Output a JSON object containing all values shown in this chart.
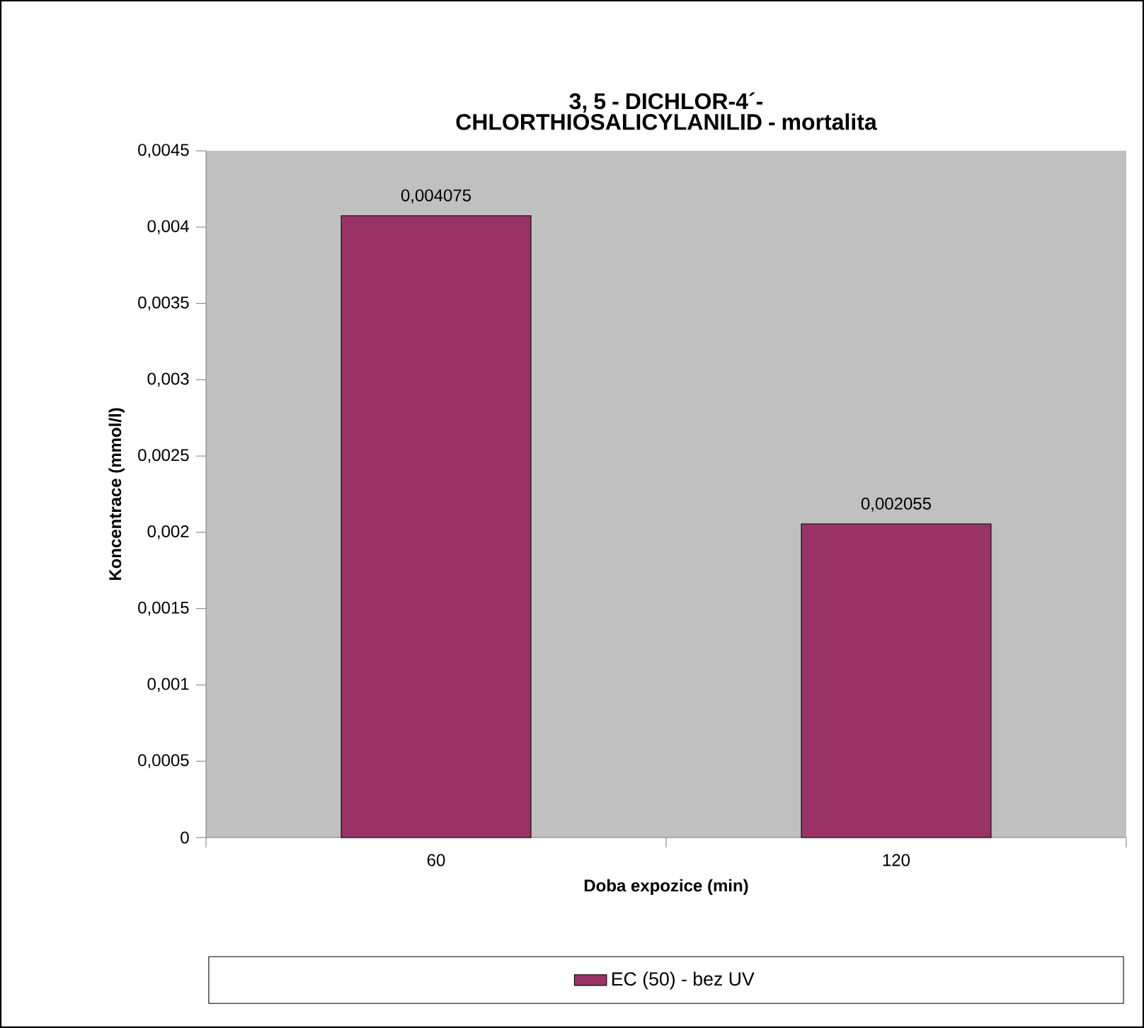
{
  "chart_data": {
    "type": "bar",
    "title": "3, 5 - DICHLOR-4´-CHLORTHIOSALICYLANILID - mortalita",
    "xlabel": "Doba expozice (min)",
    "ylabel": "Koncentrace (mmol/l)",
    "categories": [
      "60",
      "120"
    ],
    "series": [
      {
        "name": "EC (50) - bez UV",
        "color": "#993366",
        "values": [
          0.004075,
          0.002055
        ],
        "value_labels": [
          "0,004075",
          "0,002055"
        ]
      }
    ],
    "ylim": [
      0,
      0.0045
    ],
    "yticks": [
      {
        "value": 0,
        "label": "0"
      },
      {
        "value": 0.0005,
        "label": "0,0005"
      },
      {
        "value": 0.001,
        "label": "0,001"
      },
      {
        "value": 0.0015,
        "label": "0,0015"
      },
      {
        "value": 0.002,
        "label": "0,002"
      },
      {
        "value": 0.0025,
        "label": "0,0025"
      },
      {
        "value": 0.003,
        "label": "0,003"
      },
      {
        "value": 0.0035,
        "label": "0,0035"
      },
      {
        "value": 0.004,
        "label": "0,004"
      },
      {
        "value": 0.0045,
        "label": "0,0045"
      }
    ],
    "legend": "bottom",
    "grid": false
  }
}
